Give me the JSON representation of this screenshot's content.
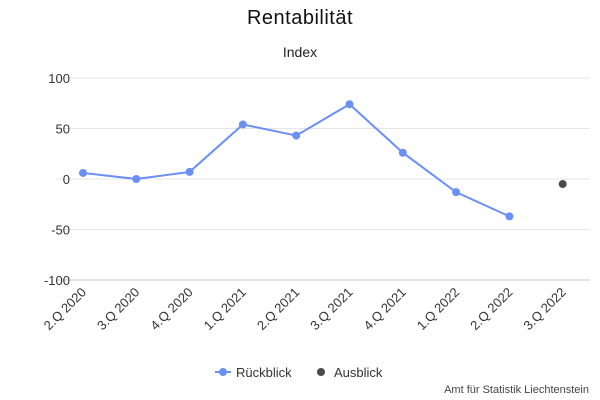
{
  "chart_data": {
    "type": "line",
    "title": "Rentabilität",
    "subtitle": "Index",
    "categories": [
      "2.Q 2020",
      "3.Q 2020",
      "4.Q 2020",
      "1.Q 2021",
      "2.Q 2021",
      "3.Q 2021",
      "4.Q 2021",
      "1.Q 2022",
      "2.Q 2022",
      "3.Q 2022"
    ],
    "series": [
      {
        "name": "Rückblick",
        "color": "#6a8ff5",
        "values": [
          6,
          0,
          7,
          54,
          43,
          74,
          26,
          -13,
          -37,
          null
        ],
        "line": true
      },
      {
        "name": "Ausblick",
        "color": "#4a4a4a",
        "values": [
          null,
          null,
          null,
          null,
          null,
          null,
          null,
          null,
          null,
          -5
        ],
        "line": false
      }
    ],
    "ylim": [
      -100,
      100
    ],
    "yticks": [
      -100,
      -50,
      0,
      50,
      100
    ],
    "grid": true,
    "legend_position": "bottom-center",
    "source": "Amt für Statistik Liechtenstein"
  }
}
